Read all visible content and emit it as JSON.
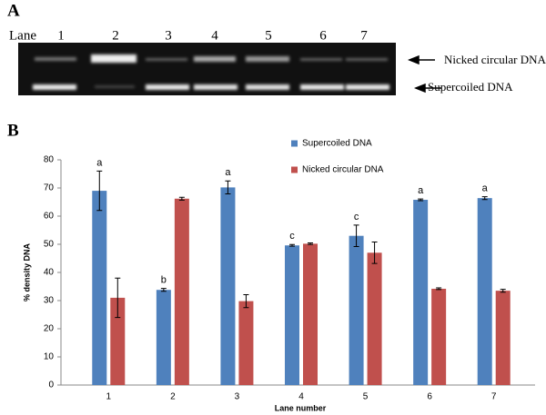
{
  "panel_a": {
    "label": "A",
    "lane_label": "Lane",
    "lanes": [
      "1",
      "2",
      "3",
      "4",
      "5",
      "6",
      "7"
    ],
    "bands": [
      "Nicked circular DNA",
      "Supercoiled DNA"
    ]
  },
  "chart_data": {
    "type": "bar",
    "panel_label": "B",
    "ylabel": "% density DNA",
    "xlabel": "Lane number",
    "categories": [
      "1",
      "2",
      "3",
      "4",
      "5",
      "6",
      "7"
    ],
    "series": [
      {
        "name": "Supercoiled DNA",
        "color": "#4f81bd",
        "values": [
          69,
          33.8,
          70.2,
          49.6,
          53,
          65.8,
          66.4
        ],
        "errors": [
          7,
          0.5,
          2.3,
          0.3,
          3.8,
          0.3,
          0.5
        ]
      },
      {
        "name": "Nicked circular DNA",
        "color": "#c0504d",
        "values": [
          31,
          66.2,
          29.8,
          50.2,
          47,
          34.2,
          33.5
        ],
        "errors": [
          7,
          0.5,
          2.3,
          0.3,
          3.8,
          0.3,
          0.5
        ]
      }
    ],
    "annotations": [
      "a",
      "b",
      "a",
      "c",
      "c",
      "a",
      "a"
    ],
    "ylim": [
      0,
      80
    ],
    "yticks": [
      0,
      10,
      20,
      30,
      40,
      50,
      60,
      70,
      80
    ],
    "grid": false,
    "legend": "upper right"
  }
}
